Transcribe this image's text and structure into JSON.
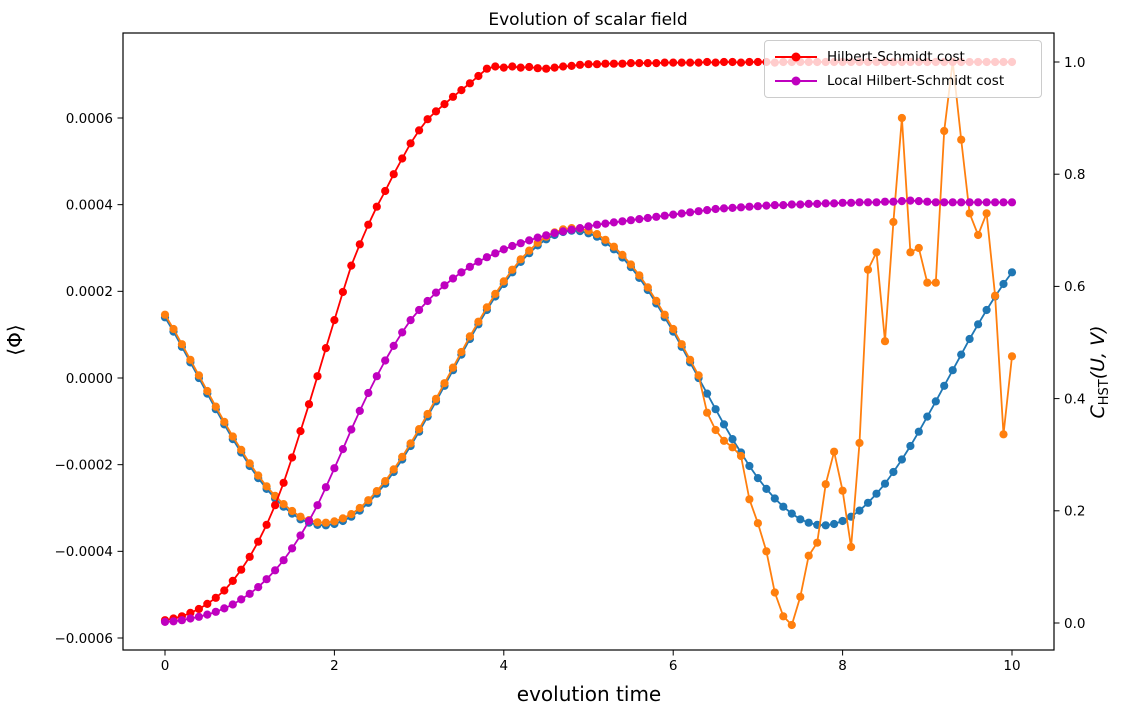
{
  "title": "Evolution of scalar field",
  "axes": {
    "x": {
      "label": "evolution time",
      "tick_labels": [
        "0",
        "2",
        "4",
        "6",
        "8",
        "10"
      ],
      "tick_values": [
        0,
        2,
        4,
        6,
        8,
        10
      ],
      "range": [
        -0.5,
        10.5
      ]
    },
    "y_left": {
      "label": "⟨Φ⟩",
      "tick_labels": [
        "0.0006",
        "0.0004",
        "0.0002",
        "0.0000",
        "−0.0002",
        "−0.0004",
        "−0.0006"
      ],
      "tick_values_e4": [
        6,
        4,
        2,
        0,
        -2,
        -4,
        -6
      ],
      "range": [
        -0.00064,
        0.0008
      ]
    },
    "y_right": {
      "label_main": "C",
      "label_sub": "HST",
      "label_args": "(U, V)",
      "tick_labels": [
        "1.0",
        "0.8",
        "0.6",
        "0.4",
        "0.2",
        "0.0"
      ],
      "tick_values": [
        1.0,
        0.8,
        0.6,
        0.4,
        0.2,
        0.0
      ],
      "range": [
        -0.05,
        1.05
      ]
    }
  },
  "legend": {
    "items": [
      {
        "label": "Hilbert-Schmidt cost",
        "color": "#ff0000"
      },
      {
        "label": "Local Hilbert-Schmidt cost",
        "color": "#bf00bf"
      }
    ]
  },
  "chart_data": {
    "type": "line",
    "title": "Evolution of scalar field",
    "xlabel": "evolution time",
    "ylabel_left": "⟨Φ⟩",
    "ylabel_right": "C_HST(U, V)",
    "x_range": [
      -0.5,
      10.5
    ],
    "grid": false,
    "legend_position": "upper right",
    "series": [
      {
        "id": "series-phi-1",
        "name": "scalar field expectation (blue)",
        "color": "#1f77b4",
        "axis": "left",
        "y_scale": 0.0001,
        "x_start": 0,
        "x_step": 0.1,
        "values": [
          1.4,
          1.07,
          0.72,
          0.36,
          0.0,
          -0.36,
          -0.72,
          -1.07,
          -1.41,
          -1.72,
          -2.03,
          -2.31,
          -2.56,
          -2.78,
          -2.97,
          -3.13,
          -3.26,
          -3.34,
          -3.39,
          -3.4,
          -3.37,
          -3.3,
          -3.2,
          -3.06,
          -2.88,
          -2.67,
          -2.44,
          -2.17,
          -1.88,
          -1.57,
          -1.24,
          -0.89,
          -0.54,
          -0.18,
          0.18,
          0.54,
          0.9,
          1.24,
          1.57,
          1.88,
          2.17,
          2.44,
          2.68,
          2.88,
          3.06,
          3.2,
          3.3,
          3.37,
          3.4,
          3.39,
          3.34,
          3.26,
          3.13,
          2.97,
          2.78,
          2.56,
          2.31,
          2.03,
          1.72,
          1.4,
          1.07,
          0.72,
          0.36,
          0.0,
          -0.36,
          -0.72,
          -1.07,
          -1.41,
          -1.72,
          -2.03,
          -2.31,
          -2.56,
          -2.78,
          -2.97,
          -3.13,
          -3.26,
          -3.34,
          -3.39,
          -3.4,
          -3.37,
          -3.3,
          -3.2,
          -3.06,
          -2.88,
          -2.67,
          -2.44,
          -2.17,
          -1.88,
          -1.57,
          -1.24,
          -0.89,
          -0.54,
          -0.18,
          0.18,
          0.54,
          0.9,
          1.24,
          1.57,
          1.88,
          2.17,
          2.44
        ]
      },
      {
        "id": "series-phi-2",
        "name": "scalar field expectation, noisy run (orange)",
        "color": "#ff7f0e",
        "axis": "left",
        "y_scale": 0.0001,
        "x_start": 0,
        "x_step": 0.1,
        "values": [
          1.46,
          1.13,
          0.78,
          0.42,
          0.06,
          -0.3,
          -0.66,
          -1.01,
          -1.35,
          -1.66,
          -1.97,
          -2.25,
          -2.5,
          -2.72,
          -2.91,
          -3.07,
          -3.2,
          -3.28,
          -3.33,
          -3.34,
          -3.31,
          -3.24,
          -3.14,
          -3.0,
          -2.82,
          -2.61,
          -2.38,
          -2.11,
          -1.82,
          -1.51,
          -1.18,
          -0.83,
          -0.48,
          -0.12,
          0.24,
          0.6,
          0.96,
          1.3,
          1.63,
          1.94,
          2.23,
          2.5,
          2.74,
          2.94,
          3.12,
          3.26,
          3.36,
          3.43,
          3.46,
          3.45,
          3.4,
          3.32,
          3.19,
          3.03,
          2.84,
          2.62,
          2.37,
          2.09,
          1.78,
          1.46,
          1.13,
          0.78,
          0.42,
          0.06,
          -0.8,
          -1.2,
          -1.45,
          -1.6,
          -1.8,
          -2.8,
          -3.35,
          -4.0,
          -4.95,
          -5.5,
          -5.7,
          -5.05,
          -4.1,
          -3.8,
          -2.45,
          -1.7,
          -2.6,
          -3.9,
          -1.5,
          2.5,
          2.9,
          0.85,
          3.6,
          6.0,
          2.9,
          3.0,
          2.2,
          2.2,
          5.7,
          7.3,
          5.5,
          3.8,
          3.3,
          3.8,
          1.9,
          -1.3,
          0.5
        ]
      },
      {
        "id": "series-hs-cost",
        "name": "Hilbert-Schmidt cost",
        "color": "#ff0000",
        "axis": "right",
        "y_scale": 1,
        "x_start": 0,
        "x_step": 0.1,
        "values": [
          0.005,
          0.008,
          0.012,
          0.018,
          0.025,
          0.034,
          0.045,
          0.058,
          0.075,
          0.095,
          0.118,
          0.145,
          0.175,
          0.21,
          0.25,
          0.295,
          0.342,
          0.39,
          0.44,
          0.49,
          0.54,
          0.59,
          0.637,
          0.675,
          0.71,
          0.742,
          0.77,
          0.8,
          0.828,
          0.855,
          0.878,
          0.898,
          0.912,
          0.925,
          0.938,
          0.95,
          0.962,
          0.975,
          0.988,
          0.992,
          0.99,
          0.992,
          0.99,
          0.991,
          0.989,
          0.988,
          0.99,
          0.992,
          0.993,
          0.995,
          0.996,
          0.996,
          0.997,
          0.997,
          0.997,
          0.998,
          0.998,
          0.998,
          0.998,
          0.999,
          0.999,
          0.999,
          0.999,
          0.999,
          1.0,
          0.999,
          1.0,
          1.0,
          0.999,
          1.0,
          1.0,
          1.0,
          0.999,
          1.0,
          1.0,
          1.0,
          1.0,
          1.0,
          1.0,
          1.0,
          1.0,
          1.0,
          1.0,
          1.0,
          1.0,
          1.0,
          1.0,
          1.0,
          1.0,
          1.0,
          1.0,
          1.0,
          1.0,
          1.0,
          1.0,
          1.0,
          1.0,
          1.0,
          1.0,
          1.0,
          1.0
        ]
      },
      {
        "id": "series-local-hs-cost",
        "name": "Local Hilbert-Schmidt cost",
        "color": "#bf00bf",
        "axis": "right",
        "y_scale": 1,
        "x_start": 0,
        "x_step": 0.1,
        "values": [
          0.002,
          0.003,
          0.005,
          0.008,
          0.011,
          0.015,
          0.02,
          0.026,
          0.033,
          0.042,
          0.052,
          0.064,
          0.078,
          0.094,
          0.112,
          0.133,
          0.156,
          0.182,
          0.21,
          0.242,
          0.276,
          0.31,
          0.345,
          0.378,
          0.41,
          0.44,
          0.468,
          0.494,
          0.518,
          0.54,
          0.558,
          0.574,
          0.589,
          0.602,
          0.614,
          0.625,
          0.635,
          0.644,
          0.652,
          0.659,
          0.666,
          0.672,
          0.677,
          0.682,
          0.687,
          0.691,
          0.695,
          0.698,
          0.701,
          0.704,
          0.707,
          0.71,
          0.712,
          0.714,
          0.716,
          0.718,
          0.72,
          0.722,
          0.724,
          0.726,
          0.728,
          0.73,
          0.732,
          0.734,
          0.736,
          0.738,
          0.739,
          0.74,
          0.741,
          0.742,
          0.743,
          0.744,
          0.745,
          0.745,
          0.746,
          0.746,
          0.747,
          0.747,
          0.748,
          0.748,
          0.749,
          0.749,
          0.75,
          0.75,
          0.75,
          0.751,
          0.751,
          0.752,
          0.753,
          0.752,
          0.751,
          0.75,
          0.75,
          0.75,
          0.75,
          0.75,
          0.75,
          0.75,
          0.75,
          0.75,
          0.75
        ]
      }
    ]
  }
}
